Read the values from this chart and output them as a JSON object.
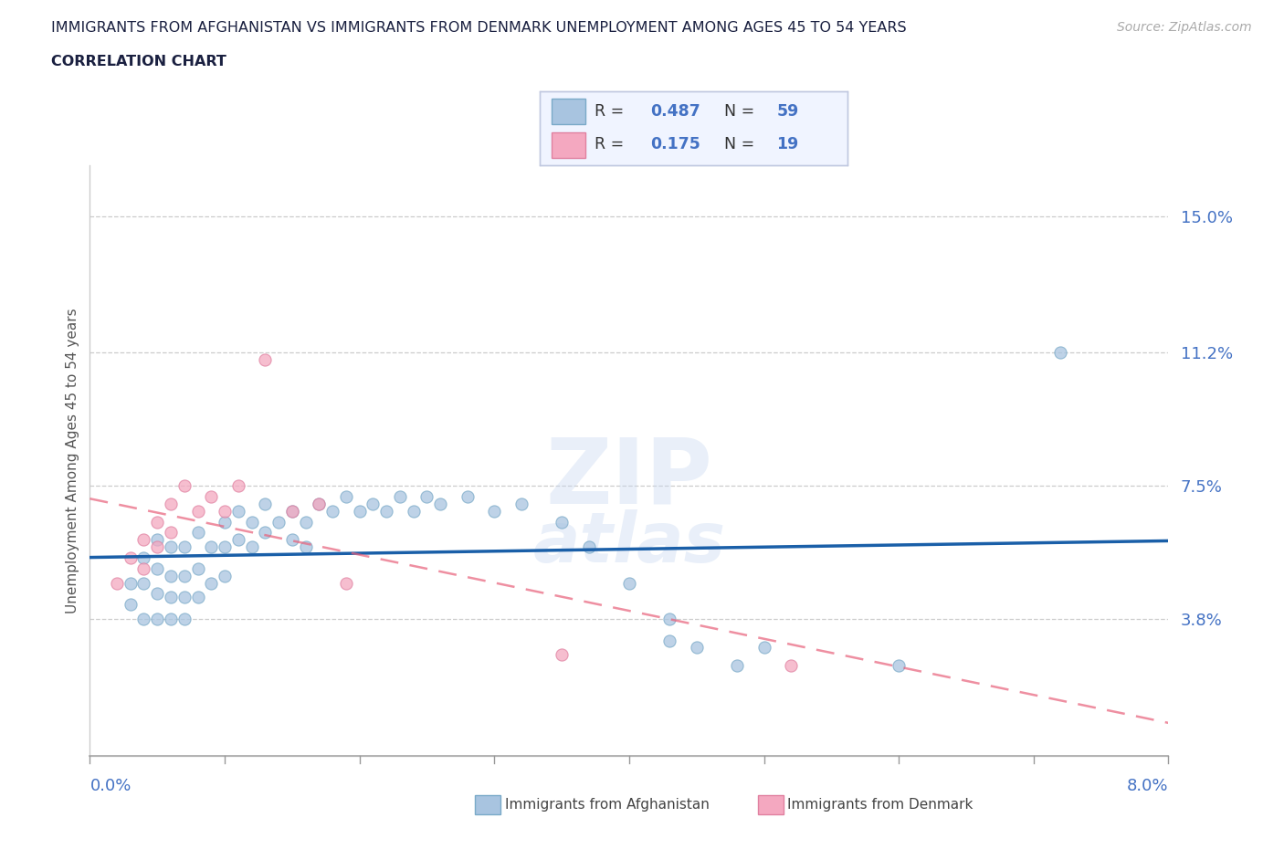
{
  "title_line1": "IMMIGRANTS FROM AFGHANISTAN VS IMMIGRANTS FROM DENMARK UNEMPLOYMENT AMONG AGES 45 TO 54 YEARS",
  "title_line2": "CORRELATION CHART",
  "source_text": "Source: ZipAtlas.com",
  "ylabel": "Unemployment Among Ages 45 to 54 years",
  "x_min": 0.0,
  "x_max": 0.08,
  "y_min": 0.0,
  "y_max": 0.164,
  "y_ticks": [
    0.038,
    0.075,
    0.112,
    0.15
  ],
  "y_tick_labels": [
    "3.8%",
    "7.5%",
    "11.2%",
    "15.0%"
  ],
  "afghanistan_color": "#a8c4e0",
  "afghanistan_edge_color": "#7aaac8",
  "denmark_color": "#f4a8c0",
  "denmark_edge_color": "#e080a0",
  "afghanistan_line_color": "#1a5fa8",
  "denmark_line_color": "#e8607a",
  "legend_r_n_color": "#4472c4",
  "afghanistan_R": "0.487",
  "afghanistan_N": "59",
  "denmark_R": "0.175",
  "denmark_N": "19",
  "afghanistan_scatter_x": [
    0.003,
    0.003,
    0.004,
    0.004,
    0.004,
    0.005,
    0.005,
    0.005,
    0.005,
    0.006,
    0.006,
    0.006,
    0.006,
    0.007,
    0.007,
    0.007,
    0.007,
    0.008,
    0.008,
    0.008,
    0.009,
    0.009,
    0.01,
    0.01,
    0.01,
    0.011,
    0.011,
    0.012,
    0.012,
    0.013,
    0.013,
    0.014,
    0.015,
    0.015,
    0.016,
    0.016,
    0.017,
    0.018,
    0.019,
    0.02,
    0.021,
    0.022,
    0.023,
    0.024,
    0.025,
    0.026,
    0.028,
    0.03,
    0.032,
    0.035,
    0.037,
    0.04,
    0.043,
    0.043,
    0.045,
    0.048,
    0.05,
    0.06,
    0.072
  ],
  "afghanistan_scatter_y": [
    0.048,
    0.042,
    0.055,
    0.048,
    0.038,
    0.06,
    0.052,
    0.045,
    0.038,
    0.058,
    0.05,
    0.044,
    0.038,
    0.058,
    0.05,
    0.044,
    0.038,
    0.062,
    0.052,
    0.044,
    0.058,
    0.048,
    0.065,
    0.058,
    0.05,
    0.068,
    0.06,
    0.065,
    0.058,
    0.07,
    0.062,
    0.065,
    0.068,
    0.06,
    0.065,
    0.058,
    0.07,
    0.068,
    0.072,
    0.068,
    0.07,
    0.068,
    0.072,
    0.068,
    0.072,
    0.07,
    0.072,
    0.068,
    0.07,
    0.065,
    0.058,
    0.048,
    0.038,
    0.032,
    0.03,
    0.025,
    0.03,
    0.025,
    0.112
  ],
  "denmark_scatter_x": [
    0.002,
    0.003,
    0.004,
    0.004,
    0.005,
    0.005,
    0.006,
    0.006,
    0.007,
    0.008,
    0.009,
    0.01,
    0.011,
    0.013,
    0.015,
    0.017,
    0.019,
    0.035,
    0.052
  ],
  "denmark_scatter_y": [
    0.048,
    0.055,
    0.06,
    0.052,
    0.065,
    0.058,
    0.07,
    0.062,
    0.075,
    0.068,
    0.072,
    0.068,
    0.075,
    0.11,
    0.068,
    0.07,
    0.048,
    0.028,
    0.025
  ]
}
